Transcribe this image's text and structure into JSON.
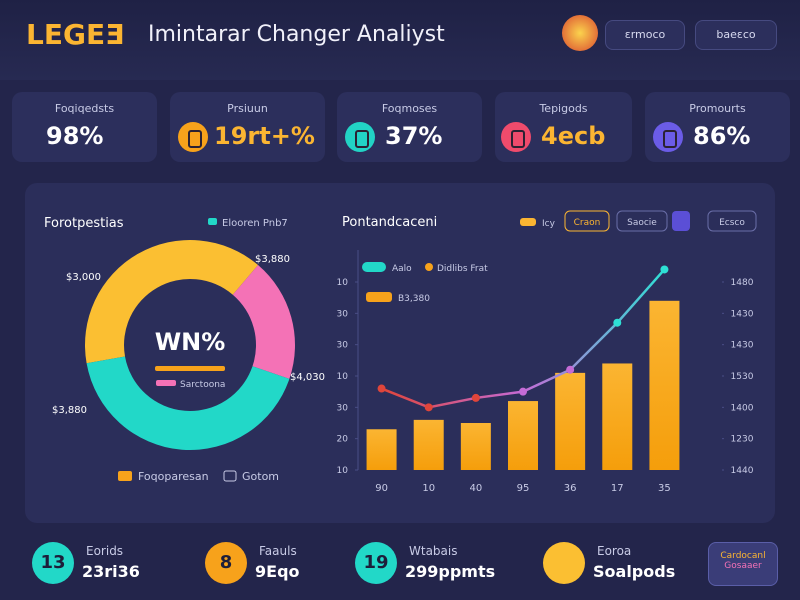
{
  "header": {
    "logo": "LEGEƎ",
    "title": "Imintarar Changer Analiyst",
    "pills": [
      "ɛrmoco",
      "baeɛco"
    ]
  },
  "stats": [
    {
      "label": "Foqiqedsts",
      "value": "98%"
    },
    {
      "label": "Prsiuun",
      "value": "19rt+%"
    },
    {
      "label": "Foqmoses",
      "value": "37%"
    },
    {
      "label": "Tepigods",
      "value": "4ecb"
    },
    {
      "label": "Promourts",
      "value": "86%"
    }
  ],
  "donut": {
    "title": "Forotpestias",
    "legend": "Elooren Pnb7",
    "center": "WN%",
    "center_sub": "Sarctoona",
    "segments": [
      {
        "color": "#fbbf32",
        "value": 39
      },
      {
        "color": "#f472b6",
        "value": 19
      },
      {
        "color": "#22d8c8",
        "value": 42
      }
    ],
    "labels": [
      "$3,880",
      "$3,000",
      "$4,030",
      "$3,880"
    ],
    "bottom_legend": [
      "Foqoparesan",
      "Gotom"
    ]
  },
  "combo": {
    "title": "Pontandcaceni",
    "legend": [
      "Aalo",
      "Didlibs Frat",
      "B3,380"
    ],
    "buttons": [
      "Icy",
      "Craon",
      "Saocie",
      "Ecsco"
    ],
    "categories": [
      "90",
      "10",
      "40",
      "95",
      "36",
      "17",
      "35"
    ],
    "bar_color": "#fbb532",
    "bars": [
      1.3,
      1.6,
      1.5,
      2.2,
      3.1,
      3.4,
      5.4
    ],
    "line_colors": [
      "#e0453a",
      "#c56bd6",
      "#2ee0d5"
    ],
    "line": [
      2.6,
      2.0,
      2.3,
      2.5,
      3.2,
      4.7,
      6.4
    ],
    "ylim": [
      0,
      6
    ],
    "yticks": [
      {
        "value": 6,
        "label": "10"
      },
      {
        "value": 5,
        "label": "30"
      },
      {
        "value": 4,
        "label": "30"
      },
      {
        "value": 3,
        "label": "10"
      },
      {
        "value": 2,
        "label": "30"
      },
      {
        "value": 1,
        "label": "20"
      },
      {
        "value": 0,
        "label": "10"
      }
    ],
    "y2lim": [
      0,
      6
    ],
    "y2ticks": [
      {
        "value": 6,
        "label": "1480"
      },
      {
        "value": 5,
        "label": "1430"
      },
      {
        "value": 4,
        "label": "1430"
      },
      {
        "value": 3,
        "label": "1530"
      },
      {
        "value": 2,
        "label": "1400"
      },
      {
        "value": 1,
        "label": "1230"
      },
      {
        "value": 0,
        "label": "1440"
      }
    ]
  },
  "bottom": [
    {
      "badge": "13",
      "label": "Eorids",
      "value": "23ri36"
    },
    {
      "badge": "8",
      "label": "Faauls",
      "value": "9Eqo"
    },
    {
      "badge": "19",
      "label": "Wtabais",
      "value": "299ppmts"
    },
    {
      "label": "Eoroa",
      "value": "Soalpods"
    }
  ],
  "bottom_button": [
    "Cardocanl",
    "Gosaaer"
  ]
}
